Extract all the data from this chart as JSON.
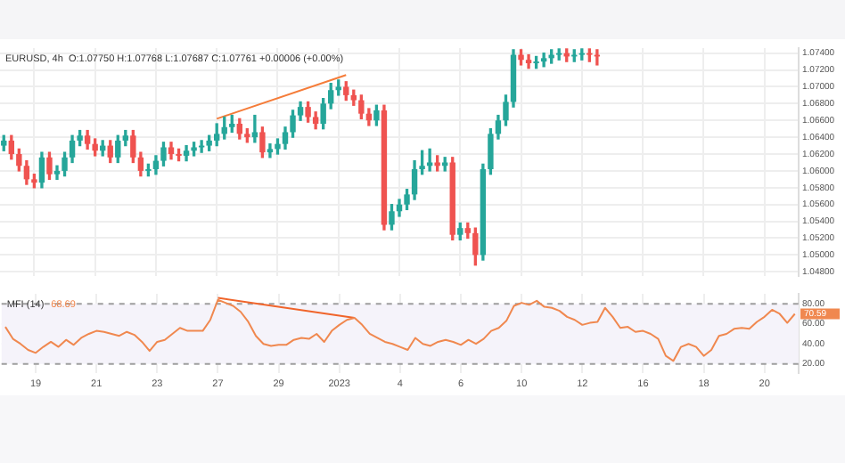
{
  "chart_data": [
    {
      "type": "candlestick",
      "title": "EURUSD, 4h  O:1.07750 H:1.07768 L:1.07687 C:1.07761 +0.00006 (+0.00%)",
      "categories": [
        null,
        null,
        null,
        null,
        "19",
        null,
        null,
        null,
        null,
        null,
        null,
        null,
        "21",
        null,
        null,
        null,
        null,
        null,
        null,
        null,
        "23",
        null,
        null,
        null,
        null,
        null,
        null,
        null,
        "27",
        null,
        null,
        null,
        null,
        null,
        null,
        null,
        "29",
        null,
        null,
        null,
        null,
        null,
        null,
        null,
        "2023",
        null,
        null,
        null,
        null,
        null,
        null,
        null,
        "4",
        null,
        null,
        null,
        null,
        null,
        null,
        null,
        "6",
        null,
        null,
        null,
        null,
        null,
        null,
        null,
        "10",
        null,
        null,
        null,
        null,
        null,
        null,
        null,
        "12",
        null,
        null,
        null,
        null,
        null,
        null,
        null,
        "16",
        null,
        null,
        null,
        null,
        null,
        null,
        null,
        "18",
        null,
        null,
        null,
        null,
        null,
        null,
        null,
        "20",
        null,
        null,
        null,
        null
      ],
      "ohlc": [
        [
          1.063,
          1.0642,
          1.0624,
          1.0636
        ],
        [
          1.0636,
          1.0642,
          1.0614,
          1.062
        ],
        [
          1.062,
          1.0626,
          1.06,
          1.0606
        ],
        [
          1.0606,
          1.0612,
          1.0584,
          1.059
        ],
        [
          1.059,
          1.0596,
          1.058,
          1.0586
        ],
        [
          1.0586,
          1.0622,
          1.058,
          1.0616
        ],
        [
          1.0616,
          1.0622,
          1.059,
          1.0596
        ],
        [
          1.0596,
          1.0606,
          1.059,
          1.06
        ],
        [
          1.06,
          1.0622,
          1.0594,
          1.0616
        ],
        [
          1.0616,
          1.0642,
          1.061,
          1.0636
        ],
        [
          1.0636,
          1.0648,
          1.063,
          1.0642
        ],
        [
          1.0642,
          1.0648,
          1.0626,
          1.0632
        ],
        [
          1.0632,
          1.0638,
          1.0618,
          1.0624
        ],
        [
          1.0624,
          1.0636,
          1.0618,
          1.063
        ],
        [
          1.063,
          1.0636,
          1.061,
          1.0616
        ],
        [
          1.0616,
          1.0642,
          1.061,
          1.0636
        ],
        [
          1.0636,
          1.0648,
          1.063,
          1.0642
        ],
        [
          1.0642,
          1.0648,
          1.061,
          1.0616
        ],
        [
          1.0616,
          1.0622,
          1.0594,
          1.06
        ],
        [
          1.06,
          1.0608,
          1.0594,
          1.0602
        ],
        [
          1.0602,
          1.0618,
          1.0596,
          1.0612
        ],
        [
          1.0612,
          1.0634,
          1.0606,
          1.0628
        ],
        [
          1.0628,
          1.0634,
          1.0614,
          1.062
        ],
        [
          1.062,
          1.0626,
          1.0612,
          1.0618
        ],
        [
          1.0618,
          1.063,
          1.0612,
          1.0624
        ],
        [
          1.0624,
          1.0634,
          1.0618,
          1.0628
        ],
        [
          1.0628,
          1.0636,
          1.0622,
          1.063
        ],
        [
          1.063,
          1.0642,
          1.0624,
          1.0636
        ],
        [
          1.0636,
          1.0656,
          1.063,
          1.0644
        ],
        [
          1.0644,
          1.0664,
          1.0638,
          1.0652
        ],
        [
          1.0652,
          1.0666,
          1.0646,
          1.0656
        ],
        [
          1.0656,
          1.0662,
          1.0638,
          1.0644
        ],
        [
          1.0644,
          1.065,
          1.0634,
          1.064
        ],
        [
          1.064,
          1.0666,
          1.0634,
          1.0646
        ],
        [
          1.0646,
          1.0652,
          1.0616,
          1.0622
        ],
        [
          1.0622,
          1.0632,
          1.0616,
          1.0626
        ],
        [
          1.0626,
          1.0638,
          1.062,
          1.0632
        ],
        [
          1.0632,
          1.0652,
          1.0626,
          1.0646
        ],
        [
          1.0646,
          1.0672,
          1.064,
          1.0666
        ],
        [
          1.0666,
          1.0682,
          1.066,
          1.0676
        ],
        [
          1.0676,
          1.0682,
          1.0658,
          1.0664
        ],
        [
          1.0664,
          1.067,
          1.065,
          1.0656
        ],
        [
          1.0656,
          1.0686,
          1.065,
          1.068
        ],
        [
          1.068,
          1.0704,
          1.0674,
          1.0696
        ],
        [
          1.0696,
          1.0708,
          1.069,
          1.07
        ],
        [
          1.07,
          1.0706,
          1.0684,
          1.069
        ],
        [
          1.069,
          1.0696,
          1.0678,
          1.0684
        ],
        [
          1.0684,
          1.069,
          1.0662,
          1.0668
        ],
        [
          1.0668,
          1.0674,
          1.0654,
          1.066
        ],
        [
          1.066,
          1.0678,
          1.0654,
          1.0672
        ],
        [
          1.0672,
          1.0678,
          1.053,
          1.0536
        ],
        [
          1.0536,
          1.056,
          1.053,
          1.0552
        ],
        [
          1.0552,
          1.0566,
          1.0546,
          1.056
        ],
        [
          1.056,
          1.0578,
          1.0554,
          1.0572
        ],
        [
          1.0572,
          1.0612,
          1.0566,
          1.0602
        ],
        [
          1.0602,
          1.0624,
          1.0596,
          1.0606
        ],
        [
          1.0606,
          1.0626,
          1.06,
          1.061
        ],
        [
          1.061,
          1.0618,
          1.06,
          1.0606
        ],
        [
          1.0606,
          1.0616,
          1.06,
          1.061
        ],
        [
          1.061,
          1.0616,
          1.0518,
          1.0524
        ],
        [
          1.0524,
          1.0538,
          1.0518,
          1.0532
        ],
        [
          1.0532,
          1.0538,
          1.052,
          1.0526
        ],
        [
          1.0526,
          1.0532,
          1.0488,
          1.05
        ],
        [
          1.05,
          1.0608,
          1.0494,
          1.0602
        ],
        [
          1.0602,
          1.065,
          1.0596,
          1.0644
        ],
        [
          1.0644,
          1.0666,
          1.0638,
          1.066
        ],
        [
          1.066,
          1.069,
          1.0654,
          1.0682
        ],
        [
          1.0682,
          1.0744,
          1.0676,
          1.0738
        ],
        [
          1.0738,
          1.0744,
          1.0726,
          1.0732
        ],
        [
          1.0732,
          1.0738,
          1.0722,
          1.0728
        ],
        [
          1.0728,
          1.0736,
          1.0722,
          1.073
        ],
        [
          1.073,
          1.074,
          1.0724,
          1.0734
        ],
        [
          1.0734,
          1.0744,
          1.0728,
          1.0738
        ],
        [
          1.0738,
          1.0745,
          1.0732,
          1.074
        ],
        [
          1.074,
          1.0745,
          1.073,
          1.0736
        ],
        [
          1.0736,
          1.0744,
          1.073,
          1.0738
        ],
        [
          1.0738,
          1.0745,
          1.0732,
          1.074
        ],
        [
          1.074,
          1.0745,
          1.073,
          1.0738
        ],
        [
          1.0738,
          1.0744,
          1.0726,
          1.0736
        ],
        null,
        null,
        null,
        null,
        null,
        null,
        null,
        null,
        null,
        null,
        null,
        null,
        null,
        null,
        null,
        null,
        null,
        null,
        null,
        null,
        null,
        null,
        null,
        null,
        null,
        null
      ],
      "colors": [
        "#26a69a",
        "#ef5350",
        "#ef5350",
        "#ef5350",
        "#ef5350",
        "#26a69a",
        "#ef5350",
        "#26a69a",
        "#26a69a",
        "#26a69a",
        "#26a69a",
        "#ef5350",
        "#ef5350",
        "#26a69a",
        "#ef5350",
        "#26a69a",
        "#26a69a",
        "#ef5350",
        "#ef5350",
        "#26a69a",
        "#26a69a",
        "#26a69a",
        "#ef5350",
        "#ef5350",
        "#26a69a",
        "#26a69a",
        "#26a69a",
        "#26a69a",
        "#26a69a",
        "#26a69a",
        "#26a69a",
        "#ef5350",
        "#ef5350",
        "#26a69a",
        "#ef5350",
        "#26a69a",
        "#26a69a",
        "#26a69a",
        "#26a69a",
        "#26a69a",
        "#ef5350",
        "#ef5350",
        "#26a69a",
        "#26a69a",
        "#26a69a",
        "#ef5350",
        "#ef5350",
        "#ef5350",
        "#ef5350",
        "#26a69a",
        "#ef5350",
        "#26a69a",
        "#26a69a",
        "#26a69a",
        "#26a69a",
        "#26a69a",
        "#26a69a",
        "#ef5350",
        "#26a69a",
        "#ef5350",
        "#26a69a",
        "#ef5350",
        "#ef5350",
        "#26a69a",
        "#26a69a",
        "#26a69a",
        "#26a69a",
        "#26a69a",
        "#ef5350",
        "#ef5350",
        "#26a69a",
        "#26a69a",
        "#26a69a",
        "#26a69a",
        "#ef5350",
        "#26a69a",
        "#26a69a",
        "#ef5350",
        "#ef5350",
        null,
        null,
        null,
        null,
        null,
        null,
        null,
        null,
        null,
        null,
        null,
        null,
        null,
        null,
        null,
        null,
        null,
        null,
        null,
        null,
        null,
        null,
        null,
        null,
        null,
        null
      ],
      "series": [
        {
          "type": "line",
          "color": "#f57c39",
          "values": [
            null,
            null,
            null,
            null,
            null,
            null,
            null,
            null,
            null,
            null,
            null,
            null,
            null,
            null,
            null,
            null,
            null,
            null,
            null,
            null,
            null,
            null,
            null,
            null,
            null,
            null,
            null,
            null,
            1.0662,
            null,
            null,
            null,
            null,
            null,
            null,
            null,
            null,
            null,
            null,
            null,
            null,
            null,
            null,
            null,
            null,
            1.0714,
            null,
            null,
            null,
            null,
            null,
            null,
            null,
            null,
            null,
            null,
            null,
            null,
            null,
            null,
            null,
            null,
            null,
            null,
            null,
            null,
            null,
            null,
            null,
            null,
            null,
            null,
            null,
            null,
            null,
            null,
            null,
            null,
            null,
            null,
            null,
            null,
            null,
            null,
            null,
            null,
            null,
            null,
            null,
            null,
            null,
            null,
            null,
            null,
            null,
            null,
            null,
            null,
            null,
            null,
            null,
            null,
            null,
            null,
            null
          ]
        }
      ],
      "ylim": [
        1.0475,
        1.0746
      ],
      "yticks": [
        {
          "value": 1.048,
          "label": "1.04800"
        },
        {
          "value": 1.05,
          "label": "1.05000"
        },
        {
          "value": 1.052,
          "label": "1.05200"
        },
        {
          "value": 1.054,
          "label": "1.05400"
        },
        {
          "value": 1.056,
          "label": "1.05600"
        },
        {
          "value": 1.058,
          "label": "1.05800"
        },
        {
          "value": 1.06,
          "label": "1.06000"
        },
        {
          "value": 1.062,
          "label": "1.06200"
        },
        {
          "value": 1.064,
          "label": "1.06400"
        },
        {
          "value": 1.066,
          "label": "1.06600"
        },
        {
          "value": 1.068,
          "label": "1.06800"
        },
        {
          "value": 1.07,
          "label": "1.07000"
        },
        {
          "value": 1.072,
          "label": "1.07200"
        },
        {
          "value": 1.074,
          "label": "1.07400"
        }
      ],
      "grid": true,
      "tick_labels": "y"
    },
    {
      "type": "line",
      "title": "MFI (14)",
      "annotations": [
        "68.69",
        "70.59"
      ],
      "categories": [
        null,
        null,
        null,
        null,
        "19",
        null,
        null,
        null,
        null,
        null,
        null,
        null,
        "21",
        null,
        null,
        null,
        null,
        null,
        null,
        null,
        "23",
        null,
        null,
        null,
        null,
        null,
        null,
        null,
        "27",
        null,
        null,
        null,
        null,
        null,
        null,
        null,
        "29",
        null,
        null,
        null,
        null,
        null,
        null,
        null,
        "2023",
        null,
        null,
        null,
        null,
        null,
        null,
        null,
        "4",
        null,
        null,
        null,
        null,
        null,
        null,
        null,
        "6",
        null,
        null,
        null,
        null,
        null,
        null,
        null,
        "10",
        null,
        null,
        null,
        null,
        null,
        null,
        null,
        "12",
        null,
        null,
        null,
        null,
        null,
        null,
        null,
        "16",
        null,
        null,
        null,
        null,
        null,
        null,
        null,
        "18",
        null,
        null,
        null,
        null,
        null,
        null,
        null,
        "20",
        null,
        null,
        null,
        null
      ],
      "series": [
        {
          "color": "#f0884f",
          "values": [
            57,
            45,
            40,
            34,
            31,
            37,
            42,
            37,
            44,
            39,
            46,
            50,
            53,
            52,
            50,
            48,
            52,
            49,
            42,
            33,
            42,
            44,
            50,
            56,
            53,
            53,
            53,
            64,
            84,
            81,
            78,
            72,
            62,
            48,
            40,
            38,
            39,
            39,
            44,
            46,
            45,
            50,
            42,
            53,
            59,
            64,
            66,
            59,
            50,
            46,
            42,
            40,
            37,
            34,
            46,
            40,
            38,
            42,
            44,
            42,
            39,
            44,
            40,
            45,
            53,
            56,
            63,
            78,
            81,
            79,
            83,
            77,
            76,
            73,
            67,
            64,
            59,
            61,
            62,
            76,
            67,
            56,
            57,
            52,
            53,
            50,
            45,
            28,
            23,
            37,
            40,
            37,
            28,
            34,
            48,
            50,
            55,
            56,
            55,
            62,
            67,
            74,
            70,
            61,
            70
          ]
        },
        {
          "color": "#f0642a",
          "values": [
            null,
            null,
            null,
            null,
            null,
            null,
            null,
            null,
            null,
            null,
            null,
            null,
            null,
            null,
            null,
            null,
            null,
            null,
            null,
            null,
            null,
            null,
            null,
            null,
            null,
            null,
            null,
            null,
            86,
            null,
            null,
            null,
            null,
            null,
            null,
            null,
            null,
            null,
            null,
            null,
            null,
            null,
            null,
            null,
            null,
            null,
            66,
            null,
            null,
            null,
            null,
            null,
            null,
            null,
            null,
            null,
            null,
            null,
            null,
            null,
            null,
            null,
            null,
            null,
            null,
            null,
            null,
            null,
            null,
            null,
            null,
            null,
            null,
            null,
            null,
            null,
            null,
            null,
            null,
            null,
            null,
            null,
            null,
            null,
            null,
            null,
            null,
            null,
            null,
            null,
            null,
            null,
            null,
            null,
            null,
            null,
            null,
            null,
            null,
            null,
            null,
            null,
            null,
            null,
            null
          ]
        }
      ],
      "ylim": [
        11,
        90
      ],
      "yticks": [
        {
          "value": 20,
          "label": "20.00"
        },
        {
          "value": 40,
          "label": "40.00"
        },
        {
          "value": 60,
          "label": "60.00"
        },
        {
          "value": 80,
          "label": "80.00"
        }
      ],
      "ref_lines": [
        {
          "axis": "y",
          "value": 80,
          "color": "#9e9e9e",
          "line_style": "dashed"
        },
        {
          "axis": "y",
          "value": 20,
          "color": "#9e9e9e",
          "line_style": "dashed"
        }
      ],
      "bands": [
        {
          "axis": "y",
          "from": 20,
          "to": 80,
          "color": "#f5f3fa"
        }
      ],
      "grid": true
    }
  ]
}
